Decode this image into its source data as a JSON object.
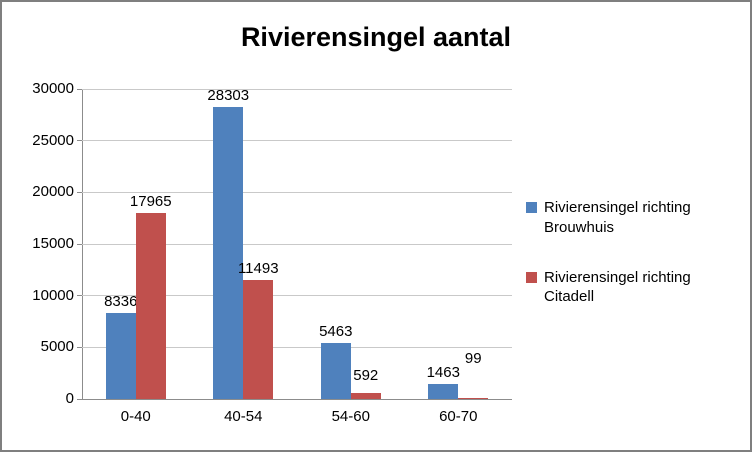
{
  "chart_data": {
    "type": "bar",
    "title": "Rivierensingel aantal",
    "categories": [
      "0-40",
      "40-54",
      "54-60",
      "60-70"
    ],
    "series": [
      {
        "name": "Rivierensingel richting Brouwhuis",
        "color": "#4F81BD",
        "values": [
          8336,
          28303,
          5463,
          1463
        ],
        "label_dy": [
          0,
          0,
          0,
          0
        ]
      },
      {
        "name": "Rivierensingel richting Citadell",
        "color": "#C0504D",
        "values": [
          17965,
          11493,
          592,
          99
        ],
        "label_dy": [
          0,
          0,
          -6,
          -28
        ]
      }
    ],
    "ylim": [
      0,
      30000
    ],
    "ytick_step": 5000,
    "yticks": [
      0,
      5000,
      10000,
      15000,
      20000,
      25000,
      30000
    ],
    "grid": true,
    "data_labels": true,
    "legend_position": "right",
    "axis_color": "#8C8C8C",
    "gridline_color": "#C9C9C9",
    "border_color": "#7F7F7F"
  }
}
